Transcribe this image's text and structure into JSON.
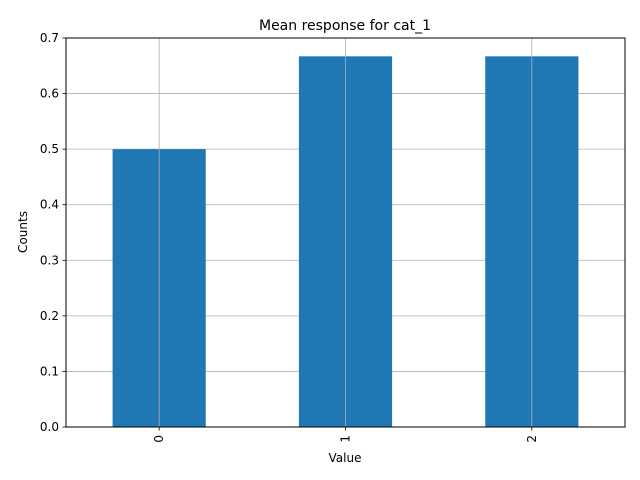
{
  "colors": {
    "bar": "#1f77b4",
    "grid": "#b0b0b0",
    "axis": "#000000",
    "background": "#ffffff"
  },
  "chart_data": {
    "type": "bar",
    "title": "Mean response for cat_1",
    "xlabel": "Value",
    "ylabel": "Counts",
    "categories": [
      "0",
      "1",
      "2"
    ],
    "values": [
      0.5,
      0.667,
      0.667
    ],
    "ylim": [
      0,
      0.7
    ],
    "yticks": [
      "0.0",
      "0.1",
      "0.2",
      "0.3",
      "0.4",
      "0.5",
      "0.6",
      "0.7"
    ],
    "grid": true,
    "x_tick_rotation": "vertical",
    "legend": "none"
  }
}
